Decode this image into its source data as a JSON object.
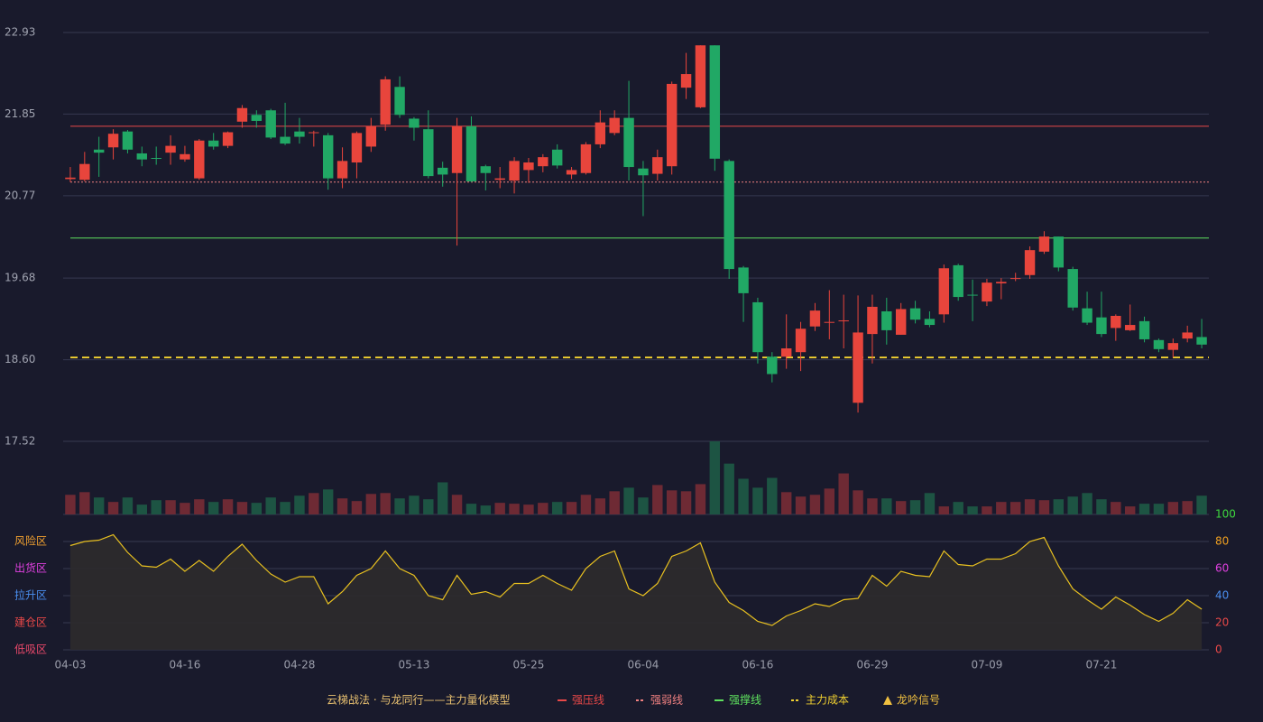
{
  "chart_data": {
    "type": "candlestick",
    "categories": [
      "04-03",
      null,
      null,
      null,
      null,
      null,
      null,
      null,
      "04-16",
      null,
      null,
      null,
      null,
      null,
      null,
      null,
      "04-28",
      null,
      null,
      null,
      null,
      null,
      null,
      null,
      "05-13",
      null,
      null,
      null,
      null,
      null,
      null,
      null,
      "05-25",
      null,
      null,
      null,
      null,
      null,
      null,
      null,
      "06-04",
      null,
      null,
      null,
      null,
      null,
      null,
      null,
      "06-16",
      null,
      null,
      null,
      null,
      null,
      null,
      null,
      "06-29",
      null,
      null,
      null,
      null,
      null,
      null,
      null,
      "07-09",
      null,
      null,
      null,
      null,
      null,
      null,
      null,
      "07-21",
      null,
      null,
      null,
      null,
      null,
      null,
      null
    ],
    "ohlc": [
      [
        20.99,
        21.15,
        20.95,
        21.01
      ],
      [
        20.98,
        21.35,
        20.96,
        21.19
      ],
      [
        21.38,
        21.55,
        21.02,
        21.34
      ],
      [
        21.41,
        21.65,
        21.25,
        21.59
      ],
      [
        21.62,
        21.64,
        21.33,
        21.38
      ],
      [
        21.33,
        21.42,
        21.16,
        21.25
      ],
      [
        21.27,
        21.42,
        21.18,
        21.26
      ],
      [
        21.34,
        21.57,
        21.18,
        21.43
      ],
      [
        21.25,
        21.43,
        21.22,
        21.32
      ],
      [
        21.0,
        21.52,
        20.98,
        21.5
      ],
      [
        21.5,
        21.6,
        21.38,
        21.42
      ],
      [
        21.43,
        21.62,
        21.4,
        21.61
      ],
      [
        21.75,
        21.97,
        21.67,
        21.93
      ],
      [
        21.84,
        21.9,
        21.67,
        21.76
      ],
      [
        21.9,
        21.92,
        21.52,
        21.54
      ],
      [
        21.55,
        22.0,
        21.44,
        21.46
      ],
      [
        21.62,
        21.8,
        21.46,
        21.55
      ],
      [
        21.6,
        21.63,
        21.42,
        21.61
      ],
      [
        21.57,
        21.6,
        20.85,
        21.0
      ],
      [
        21.0,
        21.41,
        20.87,
        21.23
      ],
      [
        21.21,
        21.62,
        21.0,
        21.6
      ],
      [
        21.42,
        21.8,
        21.35,
        21.69
      ],
      [
        21.71,
        22.35,
        21.63,
        22.31
      ],
      [
        22.21,
        22.35,
        21.8,
        21.84
      ],
      [
        21.79,
        21.81,
        21.5,
        21.67
      ],
      [
        21.65,
        21.9,
        21.0,
        21.03
      ],
      [
        21.14,
        21.22,
        20.89,
        21.05
      ],
      [
        21.07,
        21.8,
        20.11,
        21.69
      ],
      [
        21.69,
        21.82,
        20.95,
        20.96
      ],
      [
        21.16,
        21.18,
        20.84,
        21.07
      ],
      [
        20.98,
        21.15,
        20.87,
        21.0
      ],
      [
        20.97,
        21.28,
        20.8,
        21.23
      ],
      [
        21.11,
        21.27,
        20.94,
        21.21
      ],
      [
        21.16,
        21.32,
        21.08,
        21.28
      ],
      [
        21.38,
        21.45,
        21.13,
        21.17
      ],
      [
        21.05,
        21.15,
        20.99,
        21.11
      ],
      [
        21.07,
        21.48,
        21.05,
        21.45
      ],
      [
        21.45,
        21.9,
        21.4,
        21.74
      ],
      [
        21.6,
        21.9,
        21.57,
        21.8
      ],
      [
        21.8,
        22.29,
        20.97,
        21.15
      ],
      [
        21.13,
        21.23,
        20.5,
        21.04
      ],
      [
        21.06,
        21.38,
        20.97,
        21.28
      ],
      [
        21.16,
        22.28,
        21.05,
        22.25
      ],
      [
        22.2,
        22.66,
        22.05,
        22.38
      ],
      [
        21.94,
        22.76,
        21.93,
        22.76
      ],
      [
        22.76,
        22.76,
        21.1,
        21.26
      ],
      [
        21.23,
        21.25,
        19.67,
        19.8
      ],
      [
        19.82,
        19.84,
        19.1,
        19.48
      ],
      [
        19.36,
        19.42,
        18.55,
        18.7
      ],
      [
        18.64,
        18.7,
        18.3,
        18.41
      ],
      [
        18.64,
        19.2,
        18.48,
        18.75
      ],
      [
        18.7,
        19.1,
        18.45,
        19.01
      ],
      [
        19.04,
        19.35,
        18.98,
        19.25
      ],
      [
        19.09,
        19.52,
        18.87,
        19.1
      ],
      [
        19.11,
        19.46,
        18.75,
        19.12
      ],
      [
        18.03,
        19.45,
        17.9,
        18.96
      ],
      [
        18.94,
        19.46,
        18.55,
        19.3
      ],
      [
        19.24,
        19.42,
        18.8,
        18.99
      ],
      [
        18.93,
        19.35,
        18.93,
        19.27
      ],
      [
        19.28,
        19.38,
        19.08,
        19.13
      ],
      [
        19.14,
        19.24,
        19.03,
        19.06
      ],
      [
        19.2,
        19.86,
        19.09,
        19.81
      ],
      [
        19.85,
        19.87,
        19.38,
        19.43
      ],
      [
        19.46,
        19.66,
        19.11,
        19.45
      ],
      [
        19.37,
        19.67,
        19.31,
        19.62
      ],
      [
        19.61,
        19.68,
        19.4,
        19.63
      ],
      [
        19.67,
        19.75,
        19.64,
        19.68
      ],
      [
        19.72,
        20.1,
        19.67,
        20.05
      ],
      [
        20.03,
        20.3,
        20.0,
        20.23
      ],
      [
        20.23,
        20.23,
        19.77,
        19.82
      ],
      [
        19.8,
        19.83,
        19.25,
        19.29
      ],
      [
        19.28,
        19.5,
        19.06,
        19.09
      ],
      [
        19.16,
        19.5,
        18.9,
        18.94
      ],
      [
        19.02,
        19.2,
        18.85,
        19.18
      ],
      [
        18.99,
        19.33,
        18.98,
        19.06
      ],
      [
        19.11,
        19.17,
        18.83,
        18.87
      ],
      [
        18.86,
        18.88,
        18.7,
        18.74
      ],
      [
        18.73,
        18.88,
        18.63,
        18.82
      ],
      [
        18.88,
        19.05,
        18.83,
        18.96
      ],
      [
        18.9,
        19.14,
        18.75,
        18.8
      ]
    ],
    "up_color": "#e8453c",
    "down_color": "#21a865",
    "up_volume_color": "#6e2a34",
    "down_volume_color": "#1d5443",
    "ylim": [
      17.52,
      22.93
    ],
    "yticks": [
      17.52,
      {
        "value": 18.6,
        "label": "18.60"
      },
      19.68,
      20.77,
      21.85,
      22.93
    ],
    "grid": true,
    "volume": [
      22,
      25,
      19,
      14,
      19,
      11,
      16,
      16,
      13,
      17,
      14,
      17,
      14,
      13,
      19,
      14,
      21,
      24,
      28,
      18,
      15,
      23,
      24,
      18,
      21,
      17,
      36,
      22,
      12,
      10,
      13,
      12,
      11,
      13,
      14,
      14,
      22,
      18,
      26,
      30,
      19,
      33,
      27,
      26,
      34,
      82,
      57,
      40,
      30,
      41,
      25,
      20,
      22,
      29,
      46,
      27,
      18,
      18,
      15,
      16,
      24,
      9,
      14,
      9,
      9,
      14,
      14,
      17,
      16,
      17,
      20,
      24,
      17,
      14,
      9,
      12,
      12,
      14,
      15,
      21
    ],
    "levels": [
      {
        "name": "强压线",
        "value": 21.69,
        "color": "#e84848",
        "style": "solid"
      },
      {
        "name": "强弱线",
        "value": 20.95,
        "color": "#f08080",
        "style": "dotted"
      },
      {
        "name": "强撑线",
        "value": 20.21,
        "color": "#5ee05e",
        "style": "solid"
      },
      {
        "name": "主力成本",
        "value": 18.63,
        "color": "#f0d030",
        "style": "dashed"
      }
    ],
    "signal": {
      "name": "龙吟信号",
      "color": "#f0c040"
    },
    "legend_title": "云梯战法 · 与龙同行——主力量化模型",
    "legend_title_color": "#e8c070",
    "oscillator": {
      "values": [
        77,
        80,
        81,
        85,
        72,
        62,
        61,
        67,
        58,
        66,
        58,
        69,
        78,
        66,
        56,
        50,
        54,
        54,
        34,
        43,
        55,
        60,
        73,
        60,
        55,
        40,
        37,
        55,
        41,
        43,
        39,
        49,
        49,
        55,
        49,
        44,
        60,
        69,
        73,
        45,
        40,
        49,
        69,
        73,
        79,
        50,
        35,
        29,
        21,
        18,
        25,
        29,
        34,
        32,
        37,
        38,
        55,
        47,
        58,
        55,
        54,
        73,
        63,
        62,
        67,
        67,
        71,
        80,
        83,
        62,
        45,
        37,
        30,
        39,
        33,
        26,
        21,
        27,
        37,
        30
      ],
      "color": "#e8c020",
      "fill": "#2e2b2c",
      "ylim": [
        0,
        100
      ],
      "yticks": [
        0,
        20,
        40,
        60,
        80,
        100
      ],
      "tick_colors": [
        "#e84848",
        "#e84848",
        "#4a8ff0",
        "#e040e0",
        "#f0a020",
        "#3ed83e"
      ],
      "zones": [
        {
          "label": "风险区",
          "value": 80,
          "color": "#f0a030"
        },
        {
          "label": "出货区",
          "value": 60,
          "color": "#e040e0"
        },
        {
          "label": "拉升区",
          "value": 40,
          "color": "#4a8ff0"
        },
        {
          "label": "建仓区",
          "value": 20,
          "color": "#e84848"
        },
        {
          "label": "低吸区",
          "value": 0,
          "color": "#e8486a"
        }
      ]
    }
  }
}
